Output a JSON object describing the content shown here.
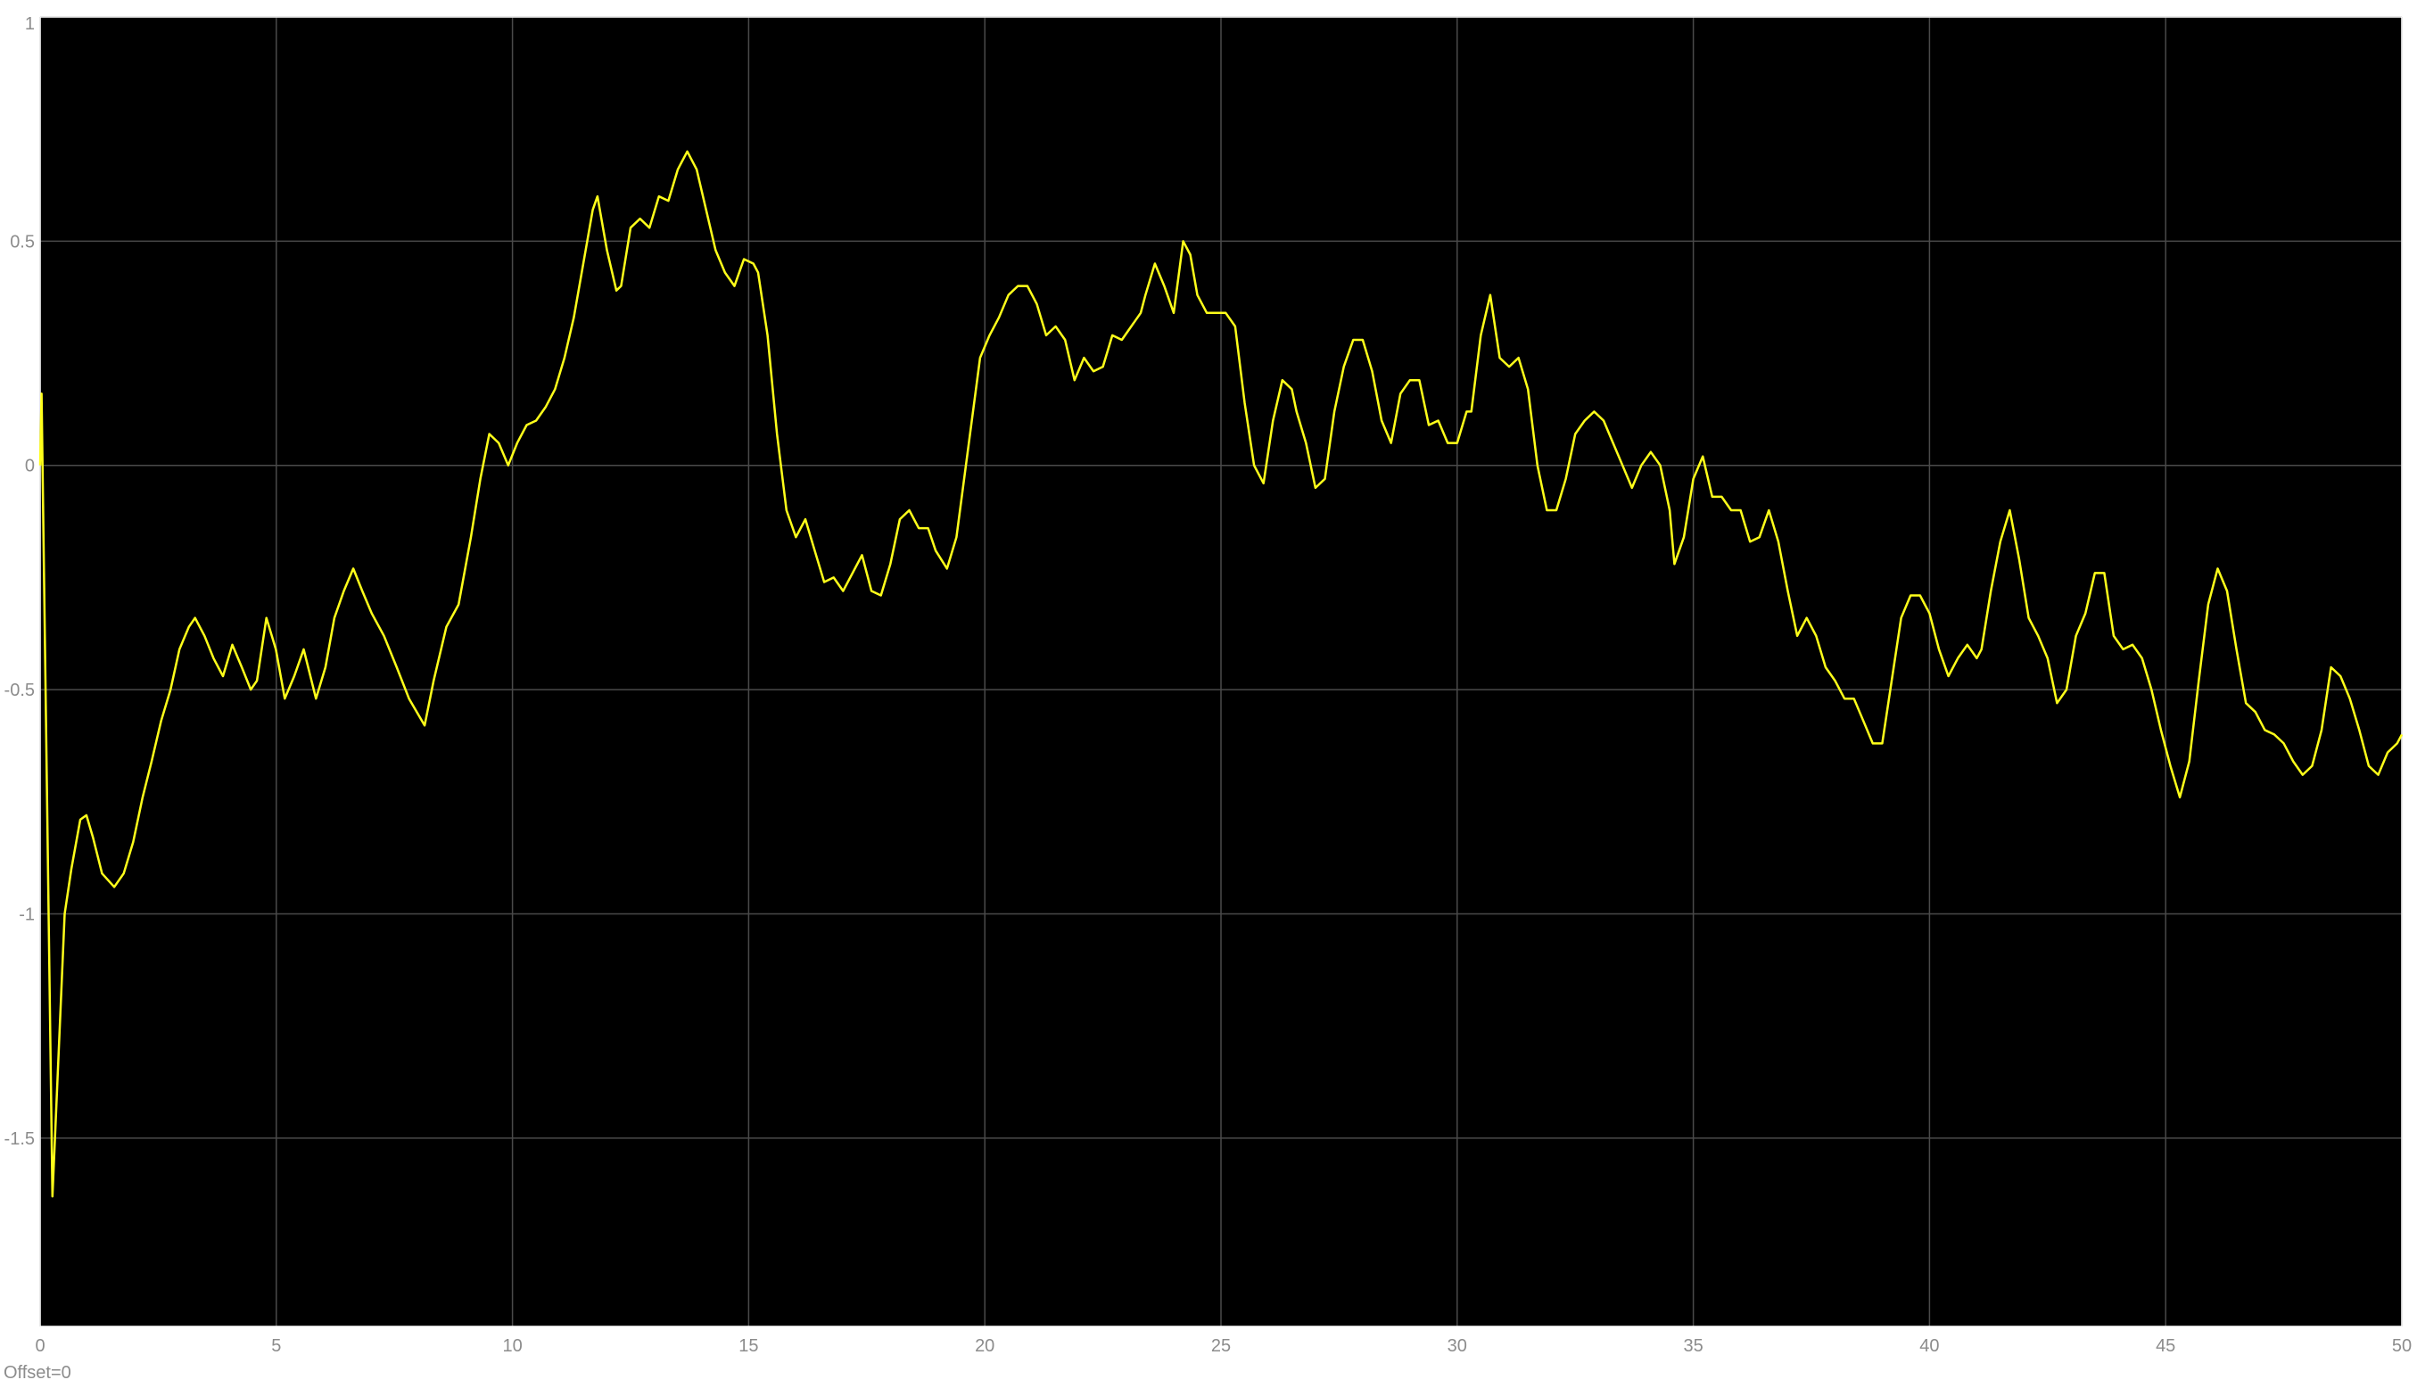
{
  "chart_data": {
    "type": "line",
    "annotation": "Offset=0",
    "xlim": [
      0,
      50
    ],
    "xticks": [
      0,
      5,
      10,
      15,
      20,
      25,
      30,
      35,
      40,
      45,
      50
    ],
    "ylim": [
      -1.92,
      1
    ],
    "yticks": [
      -1.5,
      -1,
      -0.5,
      0,
      0.5,
      1
    ],
    "grid": true,
    "x": [
      0,
      0.03,
      0.26,
      0.52,
      0.66,
      0.85,
      0.98,
      1.12,
      1.31,
      1.57,
      1.77,
      1.97,
      2.17,
      2.36,
      2.56,
      2.76,
      2.95,
      3.15,
      3.28,
      3.48,
      3.67,
      3.87,
      4.07,
      4.27,
      4.46,
      4.59,
      4.79,
      4.99,
      5.18,
      5.38,
      5.58,
      5.84,
      6.04,
      6.23,
      6.43,
      6.63,
      6.82,
      7.02,
      7.28,
      7.55,
      7.81,
      8.14,
      8.33,
      8.6,
      8.86,
      9.12,
      9.32,
      9.51,
      9.71,
      9.91,
      10.1,
      10.3,
      10.5,
      10.7,
      10.9,
      11.1,
      11.3,
      11.5,
      11.7,
      11.8,
      12.0,
      12.2,
      12.3,
      12.5,
      12.7,
      12.9,
      13.1,
      13.3,
      13.5,
      13.7,
      13.9,
      14.1,
      14.3,
      14.5,
      14.7,
      14.9,
      15.1,
      15.2,
      15.4,
      15.6,
      15.8,
      16.0,
      16.2,
      16.4,
      16.6,
      16.8,
      17.0,
      17.2,
      17.4,
      17.6,
      17.8,
      18.0,
      18.2,
      18.4,
      18.6,
      18.8,
      18.96,
      19.2,
      19.4,
      19.6,
      19.8,
      19.9,
      20.1,
      20.3,
      20.5,
      20.7,
      20.9,
      21.1,
      21.3,
      21.5,
      21.7,
      21.9,
      22.1,
      22.3,
      22.5,
      22.7,
      22.9,
      23.1,
      23.3,
      23.4,
      23.6,
      23.8,
      24.0,
      24.2,
      24.35,
      24.5,
      24.7,
      24.9,
      25.1,
      25.3,
      25.5,
      25.7,
      25.9,
      26.1,
      26.3,
      26.5,
      26.6,
      26.8,
      27.0,
      27.2,
      27.4,
      27.6,
      27.8,
      28.0,
      28.2,
      28.4,
      28.6,
      28.8,
      29.0,
      29.2,
      29.4,
      29.6,
      29.8,
      30.0,
      30.2,
      30.3,
      30.5,
      30.7,
      30.9,
      31.1,
      31.3,
      31.5,
      31.7,
      31.9,
      32.1,
      32.3,
      32.5,
      32.7,
      32.9,
      33.1,
      33.3,
      33.5,
      33.7,
      33.9,
      34.1,
      34.3,
      34.5,
      34.6,
      34.8,
      35.0,
      35.2,
      35.4,
      35.6,
      35.8,
      36.0,
      36.2,
      36.4,
      36.6,
      36.8,
      37.0,
      37.2,
      37.4,
      37.6,
      37.8,
      38.0,
      38.2,
      38.4,
      38.6,
      38.8,
      39.0,
      39.2,
      39.4,
      39.6,
      39.8,
      40.0,
      40.2,
      40.4,
      40.6,
      40.8,
      41.0,
      41.1,
      41.3,
      41.5,
      41.7,
      41.9,
      42.1,
      42.3,
      42.5,
      42.7,
      42.9,
      43.1,
      43.3,
      43.5,
      43.7,
      43.9,
      44.1,
      44.3,
      44.5,
      44.7,
      44.9,
      45.1,
      45.3,
      45.5,
      45.7,
      45.9,
      46.1,
      46.3,
      46.5,
      46.7,
      46.9,
      47.1,
      47.3,
      47.5,
      47.7,
      47.9,
      48.1,
      48.3,
      48.5,
      48.7,
      48.9,
      49.1,
      49.3,
      49.5,
      49.7,
      49.9,
      50.0
    ],
    "series": [
      {
        "color": "#ffff1a",
        "values": [
          0,
          0.16,
          -1.63,
          -1.0,
          -0.9,
          -0.79,
          -0.78,
          -0.83,
          -0.91,
          -0.94,
          -0.91,
          -0.84,
          -0.74,
          -0.66,
          -0.57,
          -0.5,
          -0.41,
          -0.36,
          -0.34,
          -0.38,
          -0.43,
          -0.47,
          -0.4,
          -0.45,
          -0.5,
          -0.48,
          -0.34,
          -0.41,
          -0.52,
          -0.47,
          -0.41,
          -0.52,
          -0.45,
          -0.34,
          -0.28,
          -0.23,
          -0.28,
          -0.33,
          -0.38,
          -0.45,
          -0.52,
          -0.58,
          -0.48,
          -0.36,
          -0.31,
          -0.16,
          -0.03,
          0.07,
          0.05,
          0.0,
          0.05,
          0.09,
          0.1,
          0.13,
          0.17,
          0.24,
          0.33,
          0.45,
          0.57,
          0.6,
          0.48,
          0.39,
          0.4,
          0.53,
          0.55,
          0.53,
          0.6,
          0.59,
          0.66,
          0.7,
          0.66,
          0.57,
          0.48,
          0.43,
          0.4,
          0.46,
          0.45,
          0.43,
          0.29,
          0.07,
          -0.1,
          -0.16,
          -0.12,
          -0.19,
          -0.26,
          -0.25,
          -0.28,
          -0.24,
          -0.2,
          -0.28,
          -0.29,
          -0.22,
          -0.12,
          -0.1,
          -0.14,
          -0.14,
          -0.19,
          -0.23,
          -0.16,
          0.0,
          0.16,
          0.24,
          0.29,
          0.33,
          0.38,
          0.4,
          0.4,
          0.36,
          0.29,
          0.31,
          0.28,
          0.19,
          0.24,
          0.21,
          0.22,
          0.29,
          0.28,
          0.31,
          0.34,
          0.38,
          0.45,
          0.4,
          0.34,
          0.5,
          0.47,
          0.38,
          0.34,
          0.34,
          0.34,
          0.31,
          0.14,
          0.0,
          -0.04,
          0.1,
          0.19,
          0.17,
          0.12,
          0.05,
          -0.05,
          -0.03,
          0.12,
          0.22,
          0.28,
          0.28,
          0.21,
          0.1,
          0.05,
          0.16,
          0.19,
          0.19,
          0.09,
          0.1,
          0.05,
          0.05,
          0.12,
          0.12,
          0.29,
          0.38,
          0.24,
          0.22,
          0.24,
          0.17,
          0.0,
          -0.1,
          -0.1,
          -0.03,
          0.07,
          0.1,
          0.12,
          0.1,
          0.05,
          0.0,
          -0.05,
          0.0,
          0.03,
          0.0,
          -0.1,
          -0.22,
          -0.16,
          -0.03,
          0.02,
          -0.07,
          -0.07,
          -0.1,
          -0.1,
          -0.17,
          -0.16,
          -0.1,
          -0.17,
          -0.28,
          -0.38,
          -0.34,
          -0.38,
          -0.45,
          -0.48,
          -0.52,
          -0.52,
          -0.57,
          -0.62,
          -0.62,
          -0.48,
          -0.34,
          -0.29,
          -0.29,
          -0.33,
          -0.41,
          -0.47,
          -0.43,
          -0.4,
          -0.43,
          -0.41,
          -0.28,
          -0.17,
          -0.1,
          -0.21,
          -0.34,
          -0.38,
          -0.43,
          -0.53,
          -0.5,
          -0.38,
          -0.33,
          -0.24,
          -0.24,
          -0.38,
          -0.41,
          -0.4,
          -0.43,
          -0.5,
          -0.59,
          -0.67,
          -0.74,
          -0.66,
          -0.48,
          -0.31,
          -0.23,
          -0.28,
          -0.41,
          -0.53,
          -0.55,
          -0.59,
          -0.6,
          -0.62,
          -0.66,
          -0.69,
          -0.67,
          -0.59,
          -0.45,
          -0.47,
          -0.52,
          -0.59,
          -0.67,
          -0.69,
          -0.64,
          -0.62,
          -0.6
        ]
      }
    ]
  }
}
